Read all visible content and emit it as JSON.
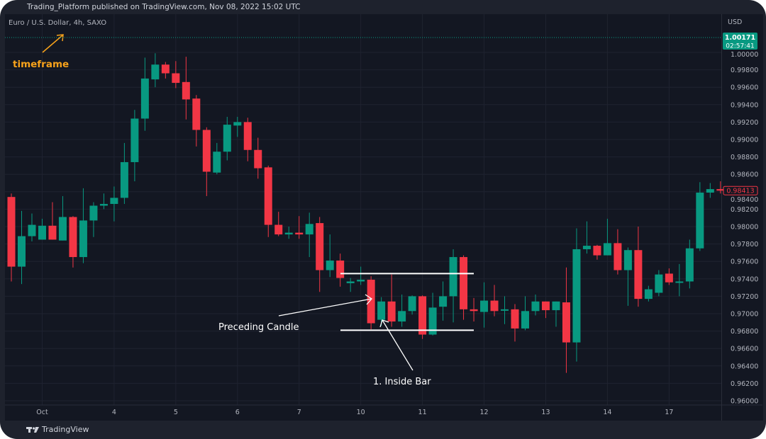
{
  "header": {
    "publisher_line": "Trading_Platform published on TradingView.com, Nov 08, 2022 15:02 UTC"
  },
  "footer": {
    "logo_text": "TradingView"
  },
  "colors": {
    "up": "#089981",
    "down": "#f23645",
    "background": "#131722",
    "annotation": "#ffffff",
    "timeframe_note": "#f7a21b"
  },
  "chart_data": {
    "type": "candlestick",
    "title": "Euro / U.S. Dollar, 4h, SAXO",
    "currency_label": "USD",
    "ylim": [
      0.96,
      1.0
    ],
    "yticks": [
      "1.00000",
      "0.99800",
      "0.99600",
      "0.99400",
      "0.99200",
      "0.99000",
      "0.98800",
      "0.98600",
      "0.98400",
      "0.98200",
      "0.98000",
      "0.97800",
      "0.97600",
      "0.97400",
      "0.97200",
      "0.97000",
      "0.96800",
      "0.96600",
      "0.96400",
      "0.96200",
      "0.96000"
    ],
    "xticks": [
      {
        "label": "Oct",
        "index": 3
      },
      {
        "label": "4",
        "index": 10
      },
      {
        "label": "5",
        "index": 16
      },
      {
        "label": "6",
        "index": 22
      },
      {
        "label": "7",
        "index": 28
      },
      {
        "label": "10",
        "index": 34
      },
      {
        "label": "11",
        "index": 40
      },
      {
        "label": "12",
        "index": 46
      },
      {
        "label": "13",
        "index": 52
      },
      {
        "label": "14",
        "index": 58
      },
      {
        "label": "17",
        "index": 64
      }
    ],
    "grid": true,
    "candles": [
      [
        0.9834,
        0.9838,
        0.9737,
        0.9754
      ],
      [
        0.9754,
        0.9818,
        0.9734,
        0.9789
      ],
      [
        0.9789,
        0.9815,
        0.9783,
        0.9802
      ],
      [
        0.9785,
        0.9809,
        0.9785,
        0.9801
      ],
      [
        0.9801,
        0.9828,
        0.9785,
        0.9785
      ],
      [
        0.9784,
        0.9835,
        0.9784,
        0.9811
      ],
      [
        0.9811,
        0.9812,
        0.9753,
        0.9765
      ],
      [
        0.9765,
        0.9844,
        0.9758,
        0.9807
      ],
      [
        0.9807,
        0.9828,
        0.9788,
        0.9824
      ],
      [
        0.9824,
        0.9838,
        0.982,
        0.9826
      ],
      [
        0.9826,
        0.9846,
        0.9806,
        0.9833
      ],
      [
        0.9833,
        0.9896,
        0.9826,
        0.9874
      ],
      [
        0.9874,
        0.9934,
        0.9852,
        0.9924
      ],
      [
        0.9924,
        0.9994,
        0.991,
        0.997
      ],
      [
        0.9969,
        0.9999,
        0.996,
        0.9986
      ],
      [
        0.9986,
        0.9989,
        0.997,
        0.9976
      ],
      [
        0.9976,
        0.999,
        0.9959,
        0.9965
      ],
      [
        0.9966,
        0.9995,
        0.9923,
        0.9946
      ],
      [
        0.9947,
        0.9951,
        0.9892,
        0.9911
      ],
      [
        0.9911,
        0.9914,
        0.9835,
        0.9863
      ],
      [
        0.9862,
        0.9896,
        0.986,
        0.9886
      ],
      [
        0.9886,
        0.9926,
        0.9876,
        0.9917
      ],
      [
        0.9916,
        0.9926,
        0.9903,
        0.992
      ],
      [
        0.992,
        0.9925,
        0.9875,
        0.9888
      ],
      [
        0.9888,
        0.9902,
        0.9855,
        0.9867
      ],
      [
        0.9868,
        0.987,
        0.9788,
        0.9802
      ],
      [
        0.9802,
        0.9817,
        0.9789,
        0.9791
      ],
      [
        0.9791,
        0.98,
        0.9786,
        0.9793
      ],
      [
        0.9793,
        0.9812,
        0.9786,
        0.9791
      ],
      [
        0.9791,
        0.9816,
        0.9765,
        0.9803
      ],
      [
        0.9804,
        0.9811,
        0.9725,
        0.975
      ],
      [
        0.975,
        0.9791,
        0.9742,
        0.9761
      ],
      [
        0.9761,
        0.9769,
        0.9731,
        0.9741
      ],
      [
        0.9735,
        0.9741,
        0.9725,
        0.9737
      ],
      [
        0.9737,
        0.9754,
        0.9733,
        0.9739
      ],
      [
        0.9739,
        0.9743,
        0.9682,
        0.9689
      ],
      [
        0.9693,
        0.9719,
        0.9686,
        0.9714
      ],
      [
        0.9714,
        0.9745,
        0.9685,
        0.9691
      ],
      [
        0.9691,
        0.9722,
        0.9685,
        0.9703
      ],
      [
        0.9703,
        0.9721,
        0.9699,
        0.972
      ],
      [
        0.972,
        0.9721,
        0.9671,
        0.9676
      ],
      [
        0.9676,
        0.9724,
        0.9675,
        0.9707
      ],
      [
        0.9708,
        0.9737,
        0.9692,
        0.972
      ],
      [
        0.972,
        0.9774,
        0.969,
        0.9765
      ],
      [
        0.9765,
        0.9767,
        0.9693,
        0.9705
      ],
      [
        0.9705,
        0.9718,
        0.9691,
        0.9703
      ],
      [
        0.9702,
        0.9736,
        0.9684,
        0.9715
      ],
      [
        0.9715,
        0.9733,
        0.9697,
        0.9703
      ],
      [
        0.9704,
        0.972,
        0.9688,
        0.9705
      ],
      [
        0.9705,
        0.9711,
        0.9668,
        0.9683
      ],
      [
        0.9683,
        0.972,
        0.9681,
        0.9703
      ],
      [
        0.9703,
        0.9722,
        0.9698,
        0.9714
      ],
      [
        0.9714,
        0.9714,
        0.9695,
        0.9704
      ],
      [
        0.9704,
        0.9714,
        0.9685,
        0.9714
      ],
      [
        0.9713,
        0.9753,
        0.9632,
        0.9667
      ],
      [
        0.9667,
        0.9798,
        0.9645,
        0.9774
      ],
      [
        0.9774,
        0.9806,
        0.9769,
        0.9778
      ],
      [
        0.9778,
        0.9779,
        0.9762,
        0.9767
      ],
      [
        0.9767,
        0.9809,
        0.9767,
        0.9781
      ],
      [
        0.9781,
        0.9797,
        0.9745,
        0.975
      ],
      [
        0.975,
        0.9776,
        0.9709,
        0.9773
      ],
      [
        0.9773,
        0.98,
        0.9708,
        0.9717
      ],
      [
        0.9717,
        0.9732,
        0.9714,
        0.9728
      ],
      [
        0.9724,
        0.975,
        0.972,
        0.9745
      ],
      [
        0.9746,
        0.9752,
        0.9733,
        0.9736
      ],
      [
        0.9736,
        0.9757,
        0.972,
        0.9737
      ],
      [
        0.9737,
        0.9785,
        0.9729,
        0.9775
      ],
      [
        0.9775,
        0.9851,
        0.9772,
        0.9839
      ],
      [
        0.9839,
        0.985,
        0.9833,
        0.9843
      ],
      [
        0.9843,
        0.9852,
        0.9838,
        0.98413
      ]
    ],
    "candle_fields": [
      "open",
      "high",
      "low",
      "close"
    ],
    "price_tags": [
      {
        "price": 1.00171,
        "label": "1.00171",
        "countdown": "02:57:41",
        "style": "filled-green"
      },
      {
        "price": 0.98413,
        "label": "0.98413",
        "style": "outlined-red"
      }
    ],
    "annotations": {
      "timeframe_label": "timeframe",
      "preceding_label": "Preceding Candle",
      "inside_bar_label": "1. Inside Bar",
      "range_high": 0.9746,
      "range_low": 0.9681
    }
  }
}
